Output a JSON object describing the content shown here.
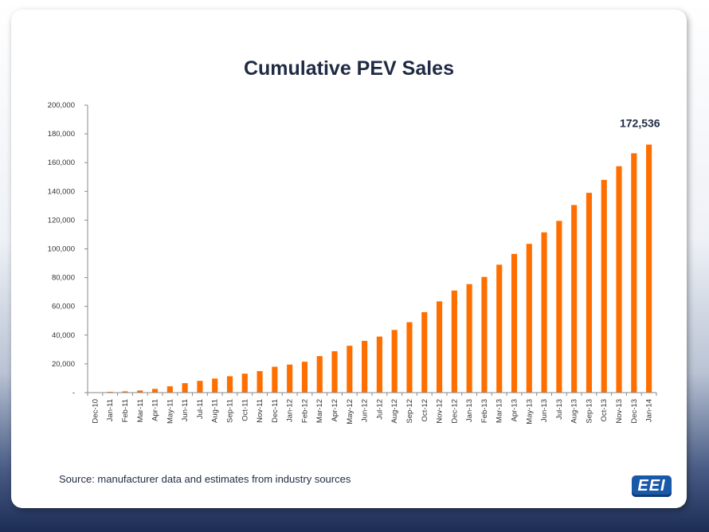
{
  "chart_data": {
    "type": "bar",
    "title": "Cumulative PEV Sales",
    "xlabel": "",
    "ylabel": "",
    "ylim": [
      0,
      200000
    ],
    "yticks": [
      "-",
      "20,000",
      "40,000",
      "60,000",
      "80,000",
      "100,000",
      "120,000",
      "140,000",
      "160,000",
      "180,000",
      "200,000"
    ],
    "categories": [
      "Dec-10",
      "Jan-11",
      "Feb-11",
      "Mar-11",
      "Apr-11",
      "May-11",
      "Jun-11",
      "Jul-11",
      "Aug-11",
      "Sep-11",
      "Oct-11",
      "Nov-11",
      "Dec-11",
      "Jan-12",
      "Feb-12",
      "Mar-12",
      "Apr-12",
      "May-12",
      "Jun-12",
      "Jul-12",
      "Aug-12",
      "Sep-12",
      "Oct-12",
      "Nov-12",
      "Dec-12",
      "Jan-13",
      "Feb-13",
      "Mar-13",
      "Apr-13",
      "May-13",
      "Jun-13",
      "Jul-13",
      "Aug-13",
      "Sep-13",
      "Oct-13",
      "Nov-13",
      "Dec-13",
      "Jan-14"
    ],
    "values": [
      300,
      600,
      900,
      1500,
      2600,
      4400,
      6600,
      8200,
      9800,
      11400,
      13200,
      15000,
      18000,
      19500,
      21500,
      25400,
      28800,
      32600,
      36000,
      39000,
      43600,
      49000,
      56000,
      63500,
      71000,
      75500,
      80500,
      89000,
      96500,
      103500,
      111500,
      119500,
      130500,
      139000,
      148000,
      157500,
      166500,
      172536
    ],
    "annotation": {
      "text": "172,536",
      "category": "Jan-14"
    },
    "bar_color": "#ff6f00",
    "grid": false,
    "legend": "none"
  },
  "footer": {
    "source": "Source: manufacturer  data and estimates  from industry sources",
    "logo_text": "EEI"
  }
}
